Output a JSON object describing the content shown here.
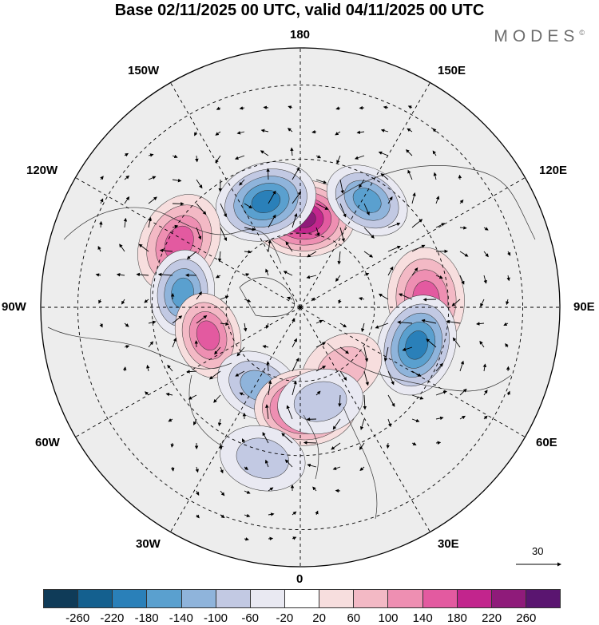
{
  "title": "Base 02/11/2025 00 UTC, valid 04/11/2025 00 UTC",
  "brand": "MODES",
  "brand_mark": "©",
  "longitudes": {
    "top": "180",
    "bottom": "0",
    "left": "90W",
    "right": "90E",
    "w150": "150W",
    "e150": "150E",
    "w120": "120W",
    "e120": "120E",
    "w60": "60W",
    "e60": "60E",
    "w30": "30W",
    "e30": "30E"
  },
  "reference_vector": "30",
  "colorbar": {
    "colors": [
      "#0f3b58",
      "#14608f",
      "#2a80b9",
      "#5aa0cf",
      "#8fb4db",
      "#c2c9e3",
      "#e9e9f2",
      "#ffffff",
      "#f7dede",
      "#f3b9c5",
      "#ee8fb2",
      "#e35aa0",
      "#c2258d",
      "#8f1b7a",
      "#5a1570"
    ],
    "labels": [
      "-260",
      "-220",
      "-180",
      "-140",
      "-100",
      "-60",
      "-20",
      "20",
      "60",
      "100",
      "140",
      "180",
      "220",
      "260"
    ]
  },
  "anomaly_centers": [
    {
      "lon_deg": 178,
      "colat_deg": 24,
      "value": 250
    },
    {
      "lon_deg": -162,
      "colat_deg": 30,
      "value": -200
    },
    {
      "lon_deg": 148,
      "colat_deg": 34,
      "value": -150
    },
    {
      "lon_deg": -118,
      "colat_deg": 37,
      "value": 170
    },
    {
      "lon_deg": 94,
      "colat_deg": 34,
      "value": 170
    },
    {
      "lon_deg": -97,
      "colat_deg": 32,
      "value": -140
    },
    {
      "lon_deg": 72,
      "colat_deg": 33,
      "value": -200
    },
    {
      "lon_deg": -73,
      "colat_deg": 26,
      "value": 150
    },
    {
      "lon_deg": 34,
      "colat_deg": 20,
      "value": 90
    },
    {
      "lon_deg": -28,
      "colat_deg": 24,
      "value": -110
    },
    {
      "lon_deg": 3,
      "colat_deg": 27,
      "value": 230
    },
    {
      "lon_deg": 12,
      "colat_deg": 26,
      "value": -80
    },
    {
      "lon_deg": -14,
      "colat_deg": 42,
      "value": -60
    }
  ]
}
